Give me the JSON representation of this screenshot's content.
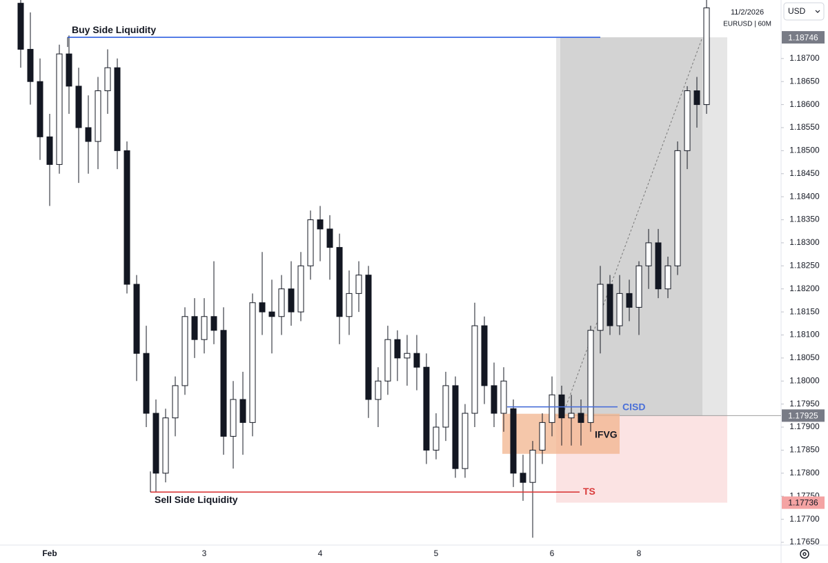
{
  "chart_data": {
    "type": "candlestick",
    "date": "11/2/2026",
    "symbol": "EURUSD | 60M",
    "currency": "USD",
    "categories": [
      null,
      null,
      null,
      "Feb",
      null,
      null,
      null,
      null,
      null,
      null,
      null,
      null,
      null,
      null,
      null,
      null,
      null,
      null,
      null,
      "3",
      null,
      null,
      null,
      null,
      null,
      null,
      null,
      null,
      null,
      null,
      null,
      "4",
      null,
      null,
      null,
      null,
      null,
      null,
      null,
      null,
      null,
      null,
      null,
      "5",
      null,
      null,
      null,
      null,
      null,
      null,
      null,
      null,
      null,
      null,
      null,
      "6",
      null,
      null,
      null,
      null,
      null,
      null,
      null,
      null,
      "8",
      null,
      null,
      null,
      null,
      null,
      null,
      null
    ],
    "open": [
      1.1882,
      1.1872,
      1.1865,
      1.1853,
      1.1847,
      1.1871,
      1.1864,
      1.1855,
      1.1852,
      1.1863,
      1.1868,
      1.185,
      1.1821,
      1.1806,
      1.1793,
      1.178,
      1.1792,
      1.1799,
      1.1814,
      1.1809,
      1.1814,
      1.1811,
      1.1788,
      1.1796,
      1.1791,
      1.1817,
      1.1815,
      1.1814,
      1.182,
      1.1815,
      1.1825,
      1.1835,
      1.1833,
      1.1829,
      1.1814,
      1.1819,
      1.1823,
      1.1796,
      1.18,
      1.1809,
      1.1805,
      1.1806,
      1.1803,
      1.1785,
      1.179,
      1.1799,
      1.1781,
      1.1793,
      1.1812,
      1.1799,
      1.1793,
      1.1794,
      1.178,
      1.1778,
      1.1785,
      1.1791,
      1.1797,
      1.1792,
      1.1793,
      1.1791,
      1.1811,
      1.1821,
      1.1812,
      1.1819,
      1.1816,
      1.1825,
      1.183,
      1.182,
      1.1825,
      1.185,
      1.1863,
      1.186
    ],
    "high": [
      1.1884,
      1.188,
      1.187,
      1.1858,
      1.1873,
      1.1875,
      1.1868,
      1.1862,
      1.1866,
      1.1872,
      1.187,
      1.1852,
      1.1823,
      1.1812,
      1.1796,
      1.1794,
      1.1801,
      1.1816,
      1.1818,
      1.1818,
      1.1826,
      1.1816,
      1.18,
      1.1802,
      1.1819,
      1.1828,
      1.1822,
      1.1823,
      1.1826,
      1.1828,
      1.1837,
      1.1838,
      1.1836,
      1.1832,
      1.1824,
      1.1826,
      1.1825,
      1.1803,
      1.1812,
      1.1811,
      1.181,
      1.181,
      1.1806,
      1.1793,
      1.1802,
      1.1801,
      1.1795,
      1.1817,
      1.1814,
      1.1804,
      1.1803,
      1.1796,
      1.1784,
      1.1787,
      1.1793,
      1.1801,
      1.1799,
      1.1797,
      1.1796,
      1.1812,
      1.1825,
      1.1823,
      1.1823,
      1.1822,
      1.1826,
      1.1833,
      1.1833,
      1.1827,
      1.1852,
      1.1864,
      1.1866,
      1.1883
    ],
    "low": [
      1.1868,
      1.186,
      1.1848,
      1.1838,
      1.1845,
      1.1858,
      1.1843,
      1.1845,
      1.1846,
      1.1858,
      1.1846,
      1.1819,
      1.18,
      1.179,
      1.1776,
      1.1778,
      1.1788,
      1.1797,
      1.1805,
      1.1806,
      1.1808,
      1.1784,
      1.1781,
      1.1784,
      1.1788,
      1.181,
      1.1806,
      1.181,
      1.1812,
      1.1813,
      1.1822,
      1.1826,
      1.1822,
      1.1808,
      1.181,
      1.1815,
      1.1792,
      1.179,
      1.1797,
      1.18,
      1.1799,
      1.1798,
      1.1782,
      1.1783,
      1.1787,
      1.1779,
      1.1779,
      1.179,
      1.1795,
      1.179,
      1.1789,
      1.1777,
      1.1774,
      1.1766,
      1.1782,
      1.1788,
      1.1786,
      1.1786,
      1.1786,
      1.1789,
      1.1806,
      1.181,
      1.181,
      1.1813,
      1.181,
      1.182,
      1.1818,
      1.1818,
      1.1823,
      1.1846,
      1.1855,
      1.1858
    ],
    "close": [
      1.1872,
      1.1865,
      1.1853,
      1.1847,
      1.1871,
      1.1864,
      1.1855,
      1.1852,
      1.1863,
      1.1868,
      1.185,
      1.1821,
      1.1806,
      1.1793,
      1.178,
      1.1792,
      1.1799,
      1.1814,
      1.1809,
      1.1814,
      1.1811,
      1.1788,
      1.1796,
      1.1791,
      1.1817,
      1.1815,
      1.1814,
      1.182,
      1.1815,
      1.1825,
      1.1835,
      1.1833,
      1.1829,
      1.1814,
      1.1819,
      1.1823,
      1.1796,
      1.18,
      1.1809,
      1.1805,
      1.1806,
      1.1803,
      1.1785,
      1.179,
      1.1799,
      1.1781,
      1.1793,
      1.1812,
      1.1799,
      1.1793,
      1.18,
      1.178,
      1.1778,
      1.1785,
      1.1791,
      1.1797,
      1.1792,
      1.1793,
      1.1791,
      1.1811,
      1.1821,
      1.1812,
      1.1819,
      1.1816,
      1.1825,
      1.183,
      1.182,
      1.1825,
      1.185,
      1.1863,
      1.186,
      1.1881
    ],
    "ylim": [
      1.17644,
      1.18827
    ],
    "yticks": [
      {
        "value": 1.1765,
        "label": "1.17650"
      },
      {
        "value": 1.177,
        "label": "1.17700"
      },
      {
        "value": 1.1775,
        "label": "1.17750"
      },
      {
        "value": 1.178,
        "label": "1.17800"
      },
      {
        "value": 1.1785,
        "label": "1.17850"
      },
      {
        "value": 1.179,
        "label": "1.17900"
      },
      {
        "value": 1.1795,
        "label": "1.17950"
      },
      {
        "value": 1.18,
        "label": "1.18000"
      },
      {
        "value": 1.1805,
        "label": "1.18050"
      },
      {
        "value": 1.181,
        "label": "1.18100"
      },
      {
        "value": 1.1815,
        "label": "1.18150"
      },
      {
        "value": 1.182,
        "label": "1.18200"
      },
      {
        "value": 1.1825,
        "label": "1.18250"
      },
      {
        "value": 1.183,
        "label": "1.18300"
      },
      {
        "value": 1.1835,
        "label": "1.18350"
      },
      {
        "value": 1.184,
        "label": "1.18400"
      },
      {
        "value": 1.1845,
        "label": "1.18450"
      },
      {
        "value": 1.185,
        "label": "1.18500"
      },
      {
        "value": 1.1855,
        "label": "1.18550"
      },
      {
        "value": 1.186,
        "label": "1.18600"
      },
      {
        "value": 1.1865,
        "label": "1.18650"
      },
      {
        "value": 1.187,
        "label": "1.18700"
      }
    ],
    "levels": [
      {
        "label": "Buy Side Liquidity",
        "value": 1.18746,
        "color": "#2f5fe0"
      },
      {
        "label": "CISD",
        "value": 1.17944,
        "color": "#4a6fd8"
      },
      {
        "label": "Sell Side Liquidity",
        "tag": "TS",
        "value": 1.17759,
        "color": "#d93a3a"
      }
    ],
    "zone": {
      "label": "IFVG",
      "top": 1.17929,
      "bottom": 1.17842,
      "color": "#f2b48e"
    },
    "position": {
      "target": 1.18746,
      "entry": 1.17925,
      "stop": 1.17736
    }
  }
}
